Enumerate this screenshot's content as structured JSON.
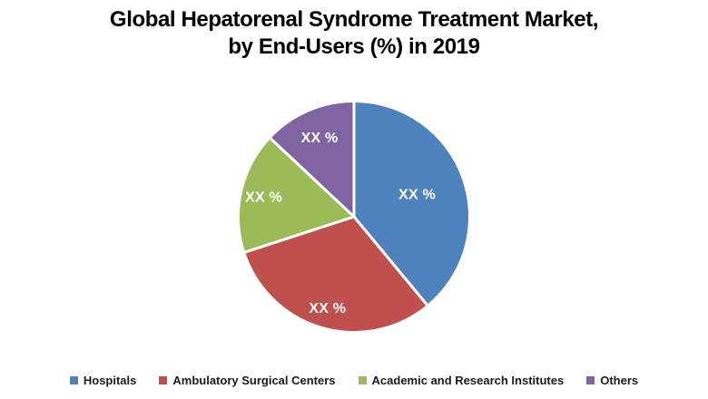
{
  "title": {
    "line1": "Global Hepatorenal Syndrome Treatment Market,",
    "line2": "by End-Users (%) in 2019"
  },
  "chart_data": {
    "type": "pie",
    "title": "Global Hepatorenal Syndrome Treatment Market, by End-Users (%) in 2019",
    "unit": "%",
    "data_labels_masked": true,
    "start_angle_deg": 0,
    "direction": "clockwise",
    "legend_position": "bottom",
    "slices": [
      {
        "label": "Hospitals",
        "value_label": "XX %",
        "percent_est": 39,
        "color": "#4F81BD"
      },
      {
        "label": "Ambulatory Surgical Centers",
        "value_label": "XX %",
        "percent_est": 31,
        "color": "#C0504D"
      },
      {
        "label": "Academic and Research Institutes",
        "value_label": "XX %",
        "percent_est": 17,
        "color": "#9BBB59"
      },
      {
        "label": "Others",
        "value_label": "XX %",
        "percent_est": 13,
        "color": "#8064A2"
      }
    ]
  }
}
